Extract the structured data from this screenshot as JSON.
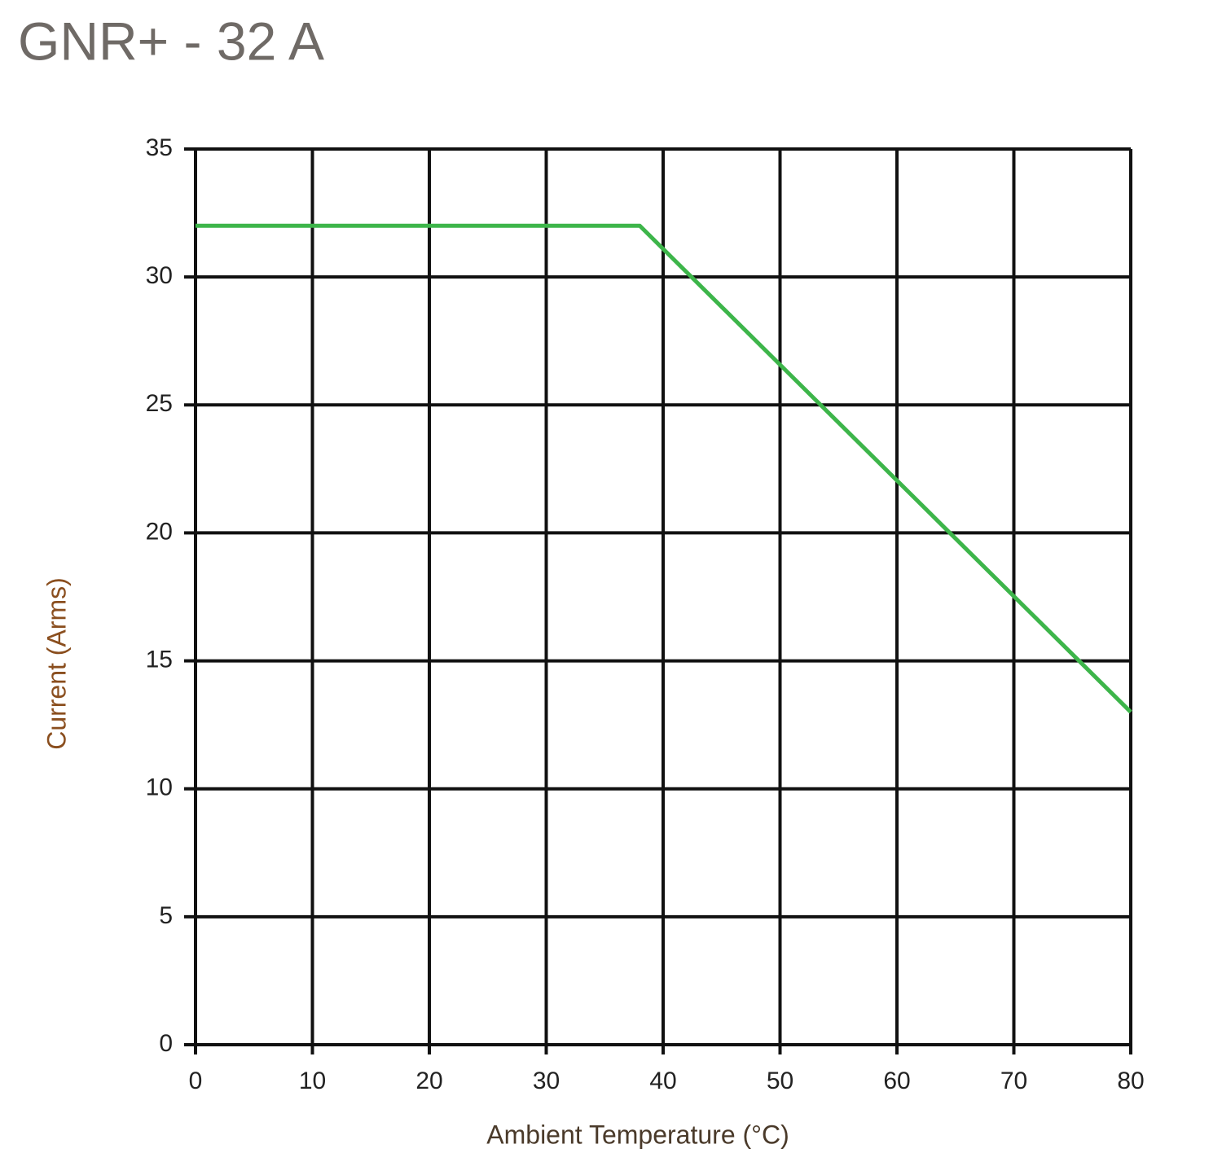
{
  "chart_data": {
    "type": "line",
    "title": "GNR+ - 32 A",
    "x_label": "Ambient Temperature (°C)",
    "y_label": "Current (Arms)",
    "x": [
      0,
      38,
      80
    ],
    "values": [
      32,
      32,
      13
    ],
    "color": "#3db54a",
    "xlim": [
      0,
      80
    ],
    "xticks": [
      0,
      10,
      20,
      30,
      40,
      50,
      60,
      70,
      80
    ],
    "ylim": [
      0,
      35
    ],
    "yticks": [
      0,
      5,
      10,
      15,
      20,
      25,
      30,
      35
    ],
    "grid": true
  }
}
